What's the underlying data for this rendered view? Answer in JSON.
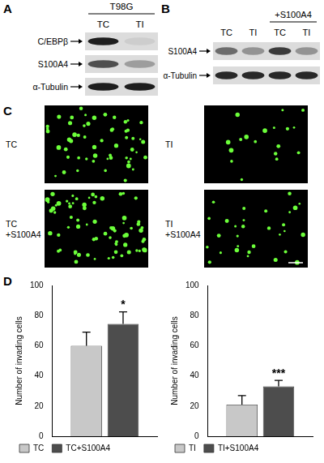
{
  "panels": [
    {
      "label": "A",
      "column_groups": [
        {
          "label": "T98G",
          "columns": [
            "TC",
            "TI"
          ]
        }
      ],
      "rows": [
        "C/EBPβ",
        "S100A4",
        "α-Tubulin"
      ]
    },
    {
      "label": "B",
      "column_groups": [
        {
          "label": null,
          "columns": [
            "TC",
            "TI"
          ]
        },
        {
          "label": "+S100A4",
          "columns": [
            "TC",
            "TI"
          ]
        }
      ],
      "rows": [
        "S100A4",
        "α-Tubulin"
      ]
    },
    {
      "label": "C",
      "images": [
        {
          "lines": [
            "TC"
          ]
        },
        {
          "lines": [
            "TI"
          ]
        },
        {
          "lines": [
            "TC",
            "+S100A4"
          ]
        },
        {
          "lines": [
            "TI",
            "+S100A4"
          ]
        }
      ]
    },
    {
      "label": "D"
    }
  ],
  "chart_data": [
    {
      "type": "bar",
      "y_label": "Number of invading cells",
      "categories": [
        null
      ],
      "series": [
        {
          "name": "TC",
          "color": "#c8c8c8",
          "values": [
            60
          ],
          "error": [
            9
          ]
        },
        {
          "name": "TC+S100A4",
          "color": "#4d4d4d",
          "values": [
            74.5
          ],
          "error": [
            8
          ],
          "annotation": "*"
        }
      ],
      "ylim": [
        0,
        100
      ],
      "yticks": [
        0,
        20,
        40,
        60,
        80,
        100
      ],
      "grid": false,
      "legend": "bottom",
      "tick_labels": "y"
    },
    {
      "type": "bar",
      "y_label": "Number of invading cells",
      "categories": [
        null
      ],
      "series": [
        {
          "name": "TI",
          "color": "#c8c8c8",
          "values": [
            21
          ],
          "error": [
            6
          ]
        },
        {
          "name": "TI+S100A4",
          "color": "#4d4d4d",
          "values": [
            33
          ],
          "error": [
            4
          ],
          "annotation": "***"
        }
      ],
      "ylim": [
        0,
        100
      ],
      "yticks": [
        0,
        20,
        40,
        60,
        80,
        100
      ],
      "grid": false,
      "legend": "bottom",
      "tick_labels": "y"
    }
  ]
}
